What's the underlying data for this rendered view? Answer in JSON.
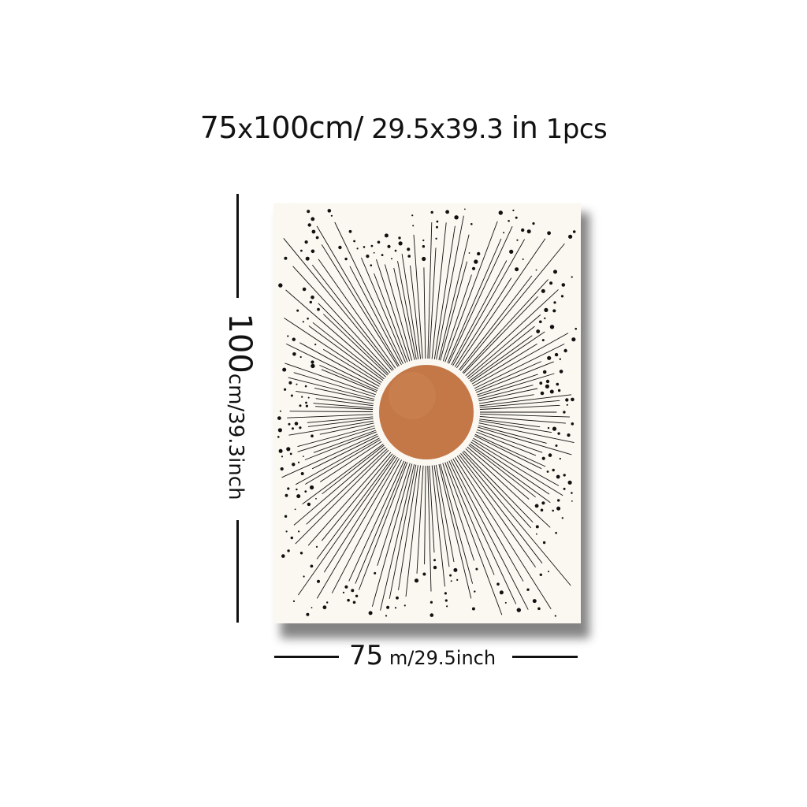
{
  "header": {
    "w": "75",
    "x1": "x",
    "h": "100cm/",
    "w_in": "29.5",
    "x2": "x",
    "h_in": "39.3",
    "unit_in": "in",
    "qty": "1",
    "pcs": "pcs"
  },
  "height_label": {
    "value": "100",
    "rest": "cm/39.3inch"
  },
  "width_label": {
    "value": "75",
    "rest": " m/29.5inch"
  },
  "poster": {
    "background": "#fbf8f1",
    "sun_color": "#c47848",
    "ray_color": "#111111"
  }
}
